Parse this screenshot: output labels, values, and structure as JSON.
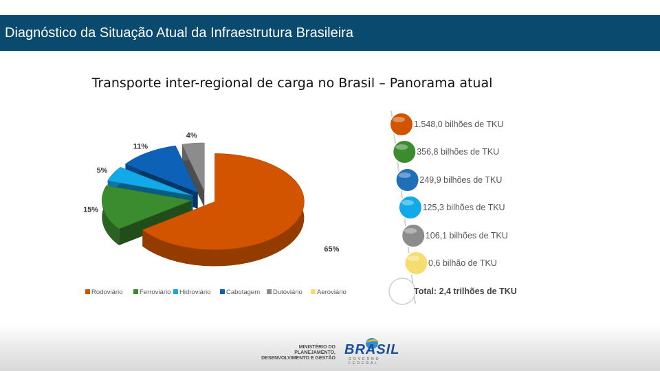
{
  "header": {
    "title": "Diagnóstico da Situação Atual da Infraestrutura Brasileira"
  },
  "slide": {
    "subtitle": "Transporte inter-regional de carga no Brasil – Panorama atual"
  },
  "chart_data": {
    "type": "pie",
    "title": "",
    "categories": [
      "Rodoviário",
      "Ferroviário",
      "Hidroviário",
      "Cabotagem",
      "Dutoviário",
      "Aeroviário"
    ],
    "values": [
      65,
      15,
      5,
      11,
      4,
      0
    ],
    "value_labels": [
      "65%",
      "15%",
      "5%",
      "11%",
      "4%",
      ""
    ],
    "colors": [
      "#d35400",
      "#3a8c2f",
      "#12a9e8",
      "#0d62b8",
      "#8c8c8c",
      "#f7dc6f"
    ],
    "legend_position": "bottom",
    "volumes": [
      "1.548,0 bilhões de TKU",
      "356,8 bilhões de TKU",
      "249,9 bilhões de TKU",
      "125,3 bilhões de TKU",
      "106,1 bilhões de TKU",
      "0,6 bilhão de TKU"
    ],
    "volume_colors": [
      "#d35400",
      "#3a8c2f",
      "#1f6fb8",
      "#12a9e8",
      "#8c8c8c",
      "#f7dc6f"
    ],
    "total": "Total: 2,4 trilhões de TKU"
  },
  "footer": {
    "ministry": "MINISTÉRIO DO\nPLANEJAMENTO,\nDESENVOLVIMENTO E GESTÃO",
    "logo_word": "BRASIL",
    "logo_tag": "GOVERNO FEDERAL"
  }
}
